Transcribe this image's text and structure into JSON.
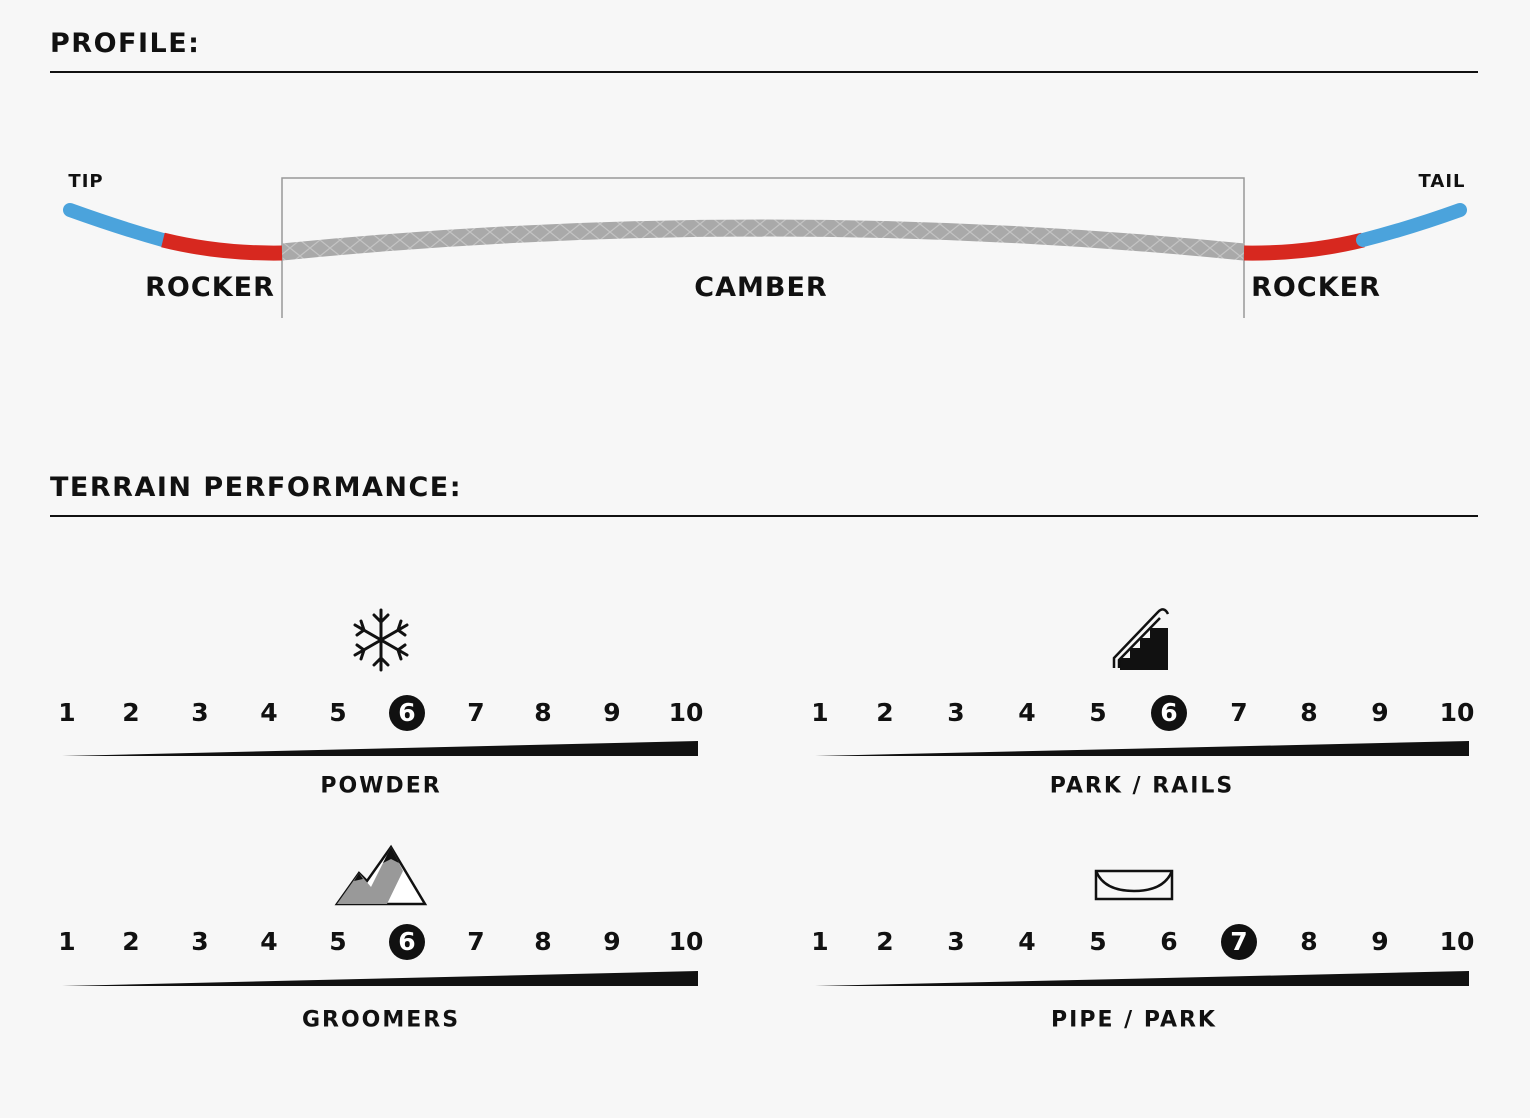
{
  "profile": {
    "title": "PROFILE:",
    "tip_label": "TIP",
    "tail_label": "TAIL",
    "zones": [
      "ROCKER",
      "CAMBER",
      "ROCKER"
    ],
    "colors": {
      "tip_tail": "#4ba3dc",
      "rocker": "#d7281f",
      "camber": "#a8a8a8"
    }
  },
  "terrain": {
    "title": "TERRAIN PERFORMANCE:",
    "scale": [
      "1",
      "2",
      "3",
      "4",
      "5",
      "6",
      "7",
      "8",
      "9",
      "10"
    ],
    "ratings": [
      {
        "label": "POWDER",
        "icon": "snowflake-icon",
        "value": 6
      },
      {
        "label": "PARK / RAILS",
        "icon": "stairs-rail-icon",
        "value": 6
      },
      {
        "label": "GROOMERS",
        "icon": "mountains-icon",
        "value": 6
      },
      {
        "label": "PIPE / PARK",
        "icon": "halfpipe-icon",
        "value": 7
      }
    ]
  }
}
